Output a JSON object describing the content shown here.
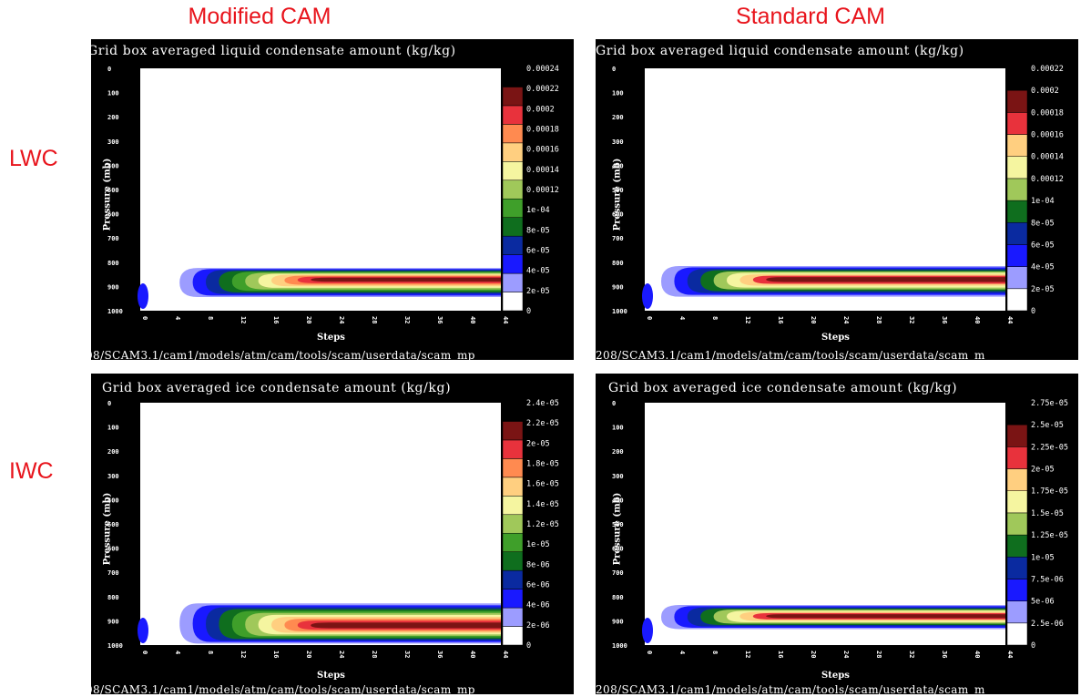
{
  "headers": {
    "modified": "Modified CAM",
    "standard": "Standard CAM",
    "lwc": "LWC",
    "iwc": "IWC"
  },
  "common": {
    "ylabel": "Pressure (mb)",
    "xlabel": "Steps",
    "y_ticks": [
      "0",
      "100",
      "200",
      "300",
      "400",
      "500",
      "600",
      "700",
      "800",
      "900",
      "1000"
    ],
    "x_ticks": [
      "0",
      "4",
      "8",
      "12",
      "16",
      "20",
      "24",
      "28",
      "32",
      "36",
      "40",
      "44"
    ],
    "footer_a": "08/SCAM3.1/cam1/models/atm/cam/tools/scam/userdata/scam_mp",
    "footer_b": "208/SCAM3.1/cam1/models/atm/cam/tools/scam/userdata/scam_m"
  },
  "colors": {
    "white": "#ffffff",
    "lavender": "#9c9cff",
    "blue": "#1919ff",
    "navy": "#0a2aa0",
    "dkgreen": "#0f6e1e",
    "green": "#3f9f2a",
    "ltgreen": "#a0c85a",
    "yellow": "#f5f5a0",
    "peach": "#ffcf80",
    "orange": "#ff8a50",
    "red": "#e8323c",
    "maroon": "#7a1414",
    "black": "#000000"
  },
  "chart_data": [
    {
      "type": "heatmap",
      "title": "Grid box averaged liquid condensate amount (kg/kg)",
      "xlabel": "Steps",
      "ylabel": "Pressure (mb)",
      "xlim": [
        0,
        44
      ],
      "ylim": [
        1000,
        0
      ],
      "levels": [
        "0",
        "2e-05",
        "4e-05",
        "6e-05",
        "8e-05",
        "1e-04",
        "0.00012",
        "0.00014",
        "0.00016",
        "0.00018",
        "0.0002",
        "0.00022",
        "0.00024"
      ],
      "level_colors": [
        "white",
        "lavender",
        "blue",
        "navy",
        "dkgreen",
        "green",
        "ltgreen",
        "yellow",
        "peach",
        "orange",
        "red",
        "maroon",
        "black"
      ],
      "cloud_layer_mb": [
        820,
        950
      ],
      "peak_level_mb": 870
    },
    {
      "type": "heatmap",
      "title": "Grid box averaged liquid condensate amount (kg/kg)",
      "xlabel": "Steps",
      "ylabel": "Pressure (mb)",
      "xlim": [
        0,
        44
      ],
      "ylim": [
        1000,
        0
      ],
      "levels": [
        "0",
        "2e-05",
        "4e-05",
        "6e-05",
        "8e-05",
        "1e-04",
        "0.00012",
        "0.00014",
        "0.00016",
        "0.00018",
        "0.0002",
        "0.00022"
      ],
      "level_colors": [
        "white",
        "lavender",
        "blue",
        "navy",
        "dkgreen",
        "ltgreen",
        "yellow",
        "peach",
        "red",
        "maroon",
        "black"
      ],
      "cloud_layer_mb": [
        810,
        950
      ],
      "peak_level_mb": 870
    },
    {
      "type": "heatmap",
      "title": "Grid box averaged ice condensate amount (kg/kg)",
      "xlabel": "Steps",
      "ylabel": "Pressure (mb)",
      "xlim": [
        0,
        44
      ],
      "ylim": [
        1000,
        0
      ],
      "levels": [
        "0",
        "2e-06",
        "4e-06",
        "6e-06",
        "8e-06",
        "1e-05",
        "1.2e-05",
        "1.4e-05",
        "1.6e-05",
        "1.8e-05",
        "2e-05",
        "2.2e-05",
        "2.4e-05"
      ],
      "level_colors": [
        "white",
        "lavender",
        "blue",
        "navy",
        "dkgreen",
        "green",
        "ltgreen",
        "yellow",
        "peach",
        "orange",
        "red",
        "maroon",
        "black"
      ],
      "cloud_layer_mb": [
        820,
        1000
      ],
      "peak_level_mb": 920
    },
    {
      "type": "heatmap",
      "title": "Grid box averaged ice condensate amount (kg/kg)",
      "xlabel": "Steps",
      "ylabel": "Pressure (mb)",
      "xlim": [
        0,
        44
      ],
      "ylim": [
        1000,
        0
      ],
      "levels": [
        "0",
        "2.5e-06",
        "5e-06",
        "7.5e-06",
        "1e-05",
        "1.25e-05",
        "1.5e-05",
        "1.75e-05",
        "2e-05",
        "2.25e-05",
        "2.5e-05",
        "2.75e-05"
      ],
      "level_colors": [
        "white",
        "lavender",
        "blue",
        "navy",
        "dkgreen",
        "ltgreen",
        "yellow",
        "peach",
        "red",
        "maroon",
        "black"
      ],
      "cloud_layer_mb": [
        830,
        940
      ],
      "peak_level_mb": 880
    }
  ]
}
